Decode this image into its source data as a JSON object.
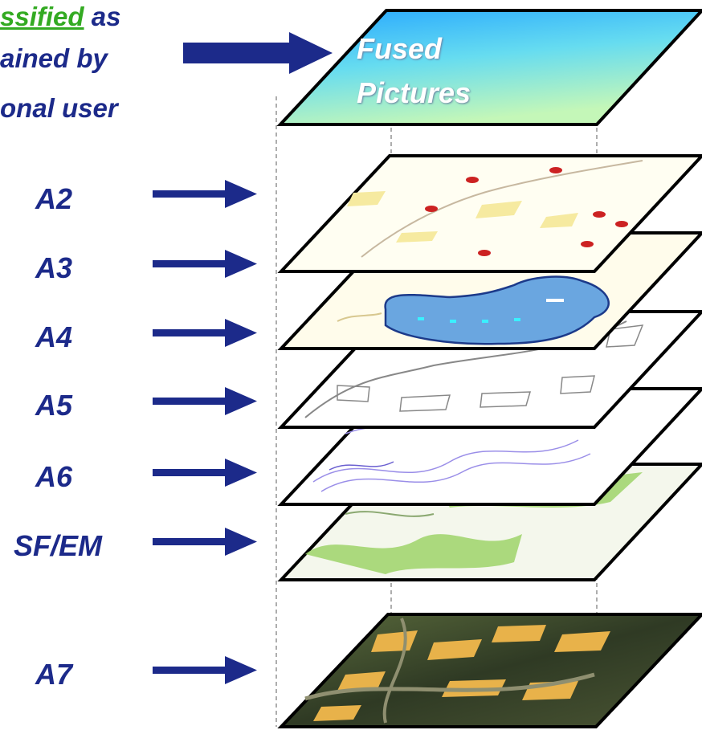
{
  "header": {
    "line1_highlight": "ssified",
    "line1_rest": " as",
    "line2": "ained by",
    "line3": "onal user"
  },
  "top_layer": {
    "line1": "Fused",
    "line2": "Pictures"
  },
  "layer_labels": [
    "A2",
    "A3",
    "A4",
    "A5",
    "A6",
    "SF/EM",
    "A7"
  ],
  "colors": {
    "label": "#1c2a8a",
    "arrow": "#1c2a8a",
    "highlight": "#33aa22",
    "fused_gradient_top": "#27a7ff",
    "fused_gradient_bottom": "#b8f5c4",
    "flood_area": "#6aa6e0",
    "green_cover": "#9ed36a",
    "aerial": "#3d4a2e"
  }
}
